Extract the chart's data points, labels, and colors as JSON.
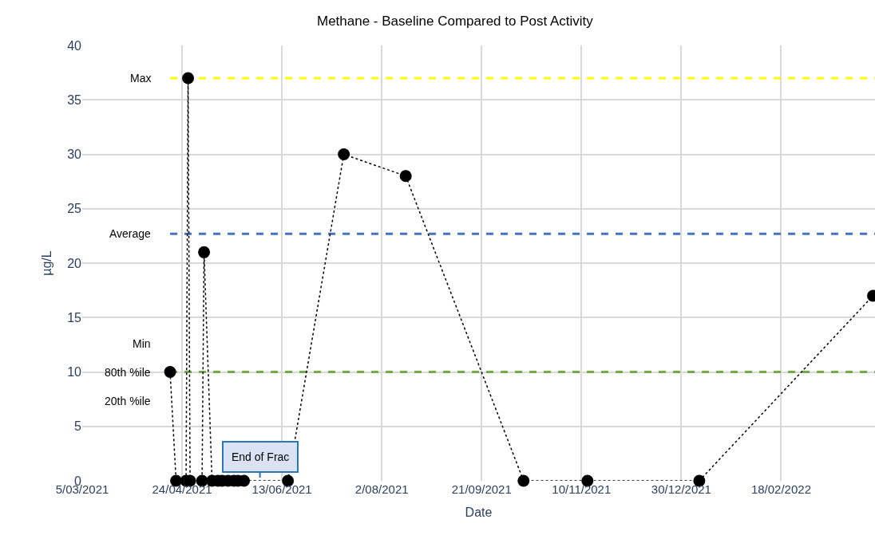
{
  "chart_data": {
    "type": "line",
    "title": "Methane - Baseline Compared to Post Activity",
    "xlabel": "Date",
    "ylabel": "µg/L",
    "x": [
      "2021-04-18",
      "2021-04-21",
      "2021-04-26",
      "2021-04-27",
      "2021-04-28",
      "2021-05-04",
      "2021-05-05",
      "2021-05-09",
      "2021-05-12",
      "2021-05-14",
      "2021-05-17",
      "2021-05-20",
      "2021-05-22",
      "2021-05-25",
      "2021-06-16",
      "2021-07-14",
      "2021-08-14",
      "2021-10-12",
      "2021-11-13",
      "2022-01-08",
      "2022-04-05"
    ],
    "series": [
      {
        "color": "#000000",
        "values": [
          10,
          0,
          0,
          37,
          0,
          0,
          21,
          0,
          0,
          0,
          0,
          0,
          0,
          0,
          0,
          30,
          28,
          0,
          0,
          0,
          17
        ]
      }
    ],
    "marker": "circle",
    "line_style": "dotted",
    "grid": true,
    "xlim": [
      "2021-03-05",
      "2022-04-06"
    ],
    "xticks": [
      {
        "value": "2021-03-05",
        "label": "5/03/2021"
      },
      {
        "value": "2021-04-24",
        "label": "24/04/2021"
      },
      {
        "value": "2021-06-13",
        "label": "13/06/2021"
      },
      {
        "value": "2021-08-02",
        "label": "2/08/2021"
      },
      {
        "value": "2021-09-21",
        "label": "21/09/2021"
      },
      {
        "value": "2021-11-10",
        "label": "10/11/2021"
      },
      {
        "value": "2021-12-30",
        "label": "30/12/2021"
      },
      {
        "value": "2022-02-18",
        "label": "18/02/2022"
      }
    ],
    "ylim": [
      0,
      40
    ],
    "yticks": [
      0,
      5,
      10,
      15,
      20,
      25,
      30,
      35,
      40
    ],
    "ref_lines": [
      {
        "axis": "y",
        "value": 37,
        "label": "Max",
        "color": "#ffff00",
        "line_style": "dashed"
      },
      {
        "axis": "y",
        "value": 22.7,
        "label": "Average",
        "color": "#4472c4",
        "line_style": "dashed"
      },
      {
        "axis": "y",
        "value": 10,
        "label": "Min\n80th %ile\n20th %ile",
        "color": "#70ad47",
        "line_style": "dashed"
      }
    ],
    "annotations": [
      {
        "text": "End of Frac",
        "x": "2021-06-02",
        "y": 0
      }
    ]
  }
}
